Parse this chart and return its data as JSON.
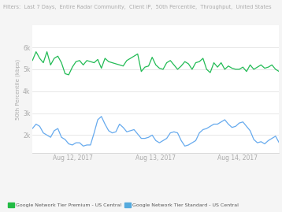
{
  "title": "Filters:  Last 7 Days,  Entire Radar Community,  Client IP,  50th Percentile,  Throughput,  United States",
  "ylabel": "50th Percentile (kbps)",
  "xlabel_ticks": [
    "Aug 12, 2017",
    "Aug 13, 2017",
    "Aug 14, 2017"
  ],
  "xlabel_tick_positions": [
    0.165,
    0.498,
    0.83
  ],
  "yticks": [
    2,
    3,
    4,
    5,
    6
  ],
  "ytick_labels": [
    "2k",
    "3k",
    "4k",
    "5k",
    "6k"
  ],
  "ylim": [
    1.2,
    7.0
  ],
  "xlim": [
    0,
    1
  ],
  "green_color": "#22bb55",
  "blue_color": "#66aaee",
  "green_color_legend": "#22bb44",
  "blue_color_legend": "#55aadd",
  "bg_color": "#f5f5f5",
  "plot_bg": "#ffffff",
  "grid_color": "#dddddd",
  "legend1": "Google Network Tier Premium - US Central",
  "legend2": "Google Network Tier Standard - US Central",
  "title_color": "#aaaaaa",
  "axis_color": "#cccccc",
  "tick_color": "#aaaaaa",
  "green_data": [
    5.4,
    5.8,
    5.5,
    5.3,
    5.8,
    5.2,
    5.5,
    5.6,
    5.3,
    4.8,
    4.75,
    5.1,
    5.35,
    5.4,
    5.2,
    5.4,
    5.35,
    5.3,
    5.45,
    5.05,
    5.5,
    5.35,
    5.3,
    5.25,
    5.2,
    5.15,
    5.4,
    5.5,
    5.6,
    5.7,
    4.9,
    5.1,
    5.15,
    5.55,
    5.2,
    5.05,
    5.0,
    5.3,
    5.4,
    5.2,
    5.0,
    5.15,
    5.35,
    5.25,
    5.0,
    5.3,
    5.35,
    5.5,
    5.0,
    4.85,
    5.3,
    5.1,
    5.3,
    5.0,
    5.15,
    5.05,
    5.0,
    5.0,
    5.1,
    4.9,
    5.2,
    5.0,
    5.1,
    5.2,
    5.05,
    5.1,
    5.2,
    5.0,
    4.9
  ],
  "blue_data": [
    2.3,
    2.5,
    2.4,
    2.1,
    2.0,
    1.9,
    2.2,
    2.3,
    1.9,
    1.8,
    1.6,
    1.55,
    1.65,
    1.65,
    1.5,
    1.55,
    1.55,
    2.1,
    2.7,
    2.85,
    2.5,
    2.2,
    2.1,
    2.15,
    2.5,
    2.35,
    2.15,
    2.2,
    2.25,
    2.05,
    1.85,
    1.85,
    1.9,
    2.0,
    1.75,
    1.65,
    1.75,
    1.85,
    2.1,
    2.15,
    2.1,
    1.75,
    1.5,
    1.55,
    1.65,
    1.75,
    2.1,
    2.25,
    2.3,
    2.4,
    2.5,
    2.5,
    2.6,
    2.7,
    2.5,
    2.35,
    2.4,
    2.55,
    2.6,
    2.4,
    2.2,
    1.8,
    1.65,
    1.7,
    1.6,
    1.75,
    1.85,
    1.95,
    1.65
  ]
}
